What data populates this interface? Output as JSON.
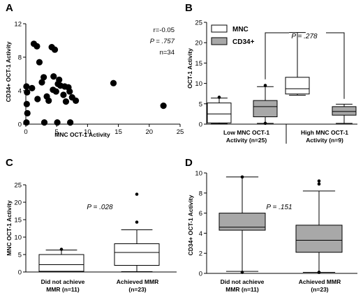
{
  "chart_data": [
    {
      "panel": "A",
      "type": "scatter",
      "xlabel": "MNC OCT-1 Activity",
      "ylabel": "CD34+ OCT-1 Activity",
      "xlim": [
        0,
        25
      ],
      "ylim": [
        0,
        12
      ],
      "xticks": [
        0,
        5,
        10,
        15,
        20,
        25
      ],
      "yticks": [
        0,
        4,
        8,
        12
      ],
      "annotations": {
        "r": "r=-0.05",
        "p_label": "P",
        "p_value": " = .757",
        "n": "n=34"
      },
      "points": [
        {
          "x": 0.1,
          "y": 4.5
        },
        {
          "x": 0.2,
          "y": 3.8
        },
        {
          "x": 0.15,
          "y": 2.4
        },
        {
          "x": 0.25,
          "y": 1.3
        },
        {
          "x": 0.1,
          "y": 0.2
        },
        {
          "x": 1.0,
          "y": 4.3
        },
        {
          "x": 1.3,
          "y": 9.6
        },
        {
          "x": 1.8,
          "y": 9.3
        },
        {
          "x": 1.9,
          "y": 3.0
        },
        {
          "x": 2.2,
          "y": 7.4
        },
        {
          "x": 2.6,
          "y": 5.0
        },
        {
          "x": 2.9,
          "y": 5.6
        },
        {
          "x": 3.0,
          "y": 0.2
        },
        {
          "x": 3.4,
          "y": 3.3
        },
        {
          "x": 3.7,
          "y": 2.8
        },
        {
          "x": 4.2,
          "y": 9.2
        },
        {
          "x": 4.4,
          "y": 4.1
        },
        {
          "x": 4.7,
          "y": 8.9
        },
        {
          "x": 4.5,
          "y": 5.7
        },
        {
          "x": 4.9,
          "y": 3.9
        },
        {
          "x": 5.2,
          "y": 4.8
        },
        {
          "x": 5.4,
          "y": 5.3
        },
        {
          "x": 5.6,
          "y": 4.6
        },
        {
          "x": 5.1,
          "y": 0.2
        },
        {
          "x": 6.1,
          "y": 3.5
        },
        {
          "x": 6.3,
          "y": 4.5
        },
        {
          "x": 6.5,
          "y": 2.7
        },
        {
          "x": 6.9,
          "y": 4.4
        },
        {
          "x": 7.1,
          "y": 3.9
        },
        {
          "x": 7.2,
          "y": 0.2
        },
        {
          "x": 7.5,
          "y": 3.2
        },
        {
          "x": 8.1,
          "y": 2.8
        },
        {
          "x": 14.2,
          "y": 4.9
        },
        {
          "x": 22.3,
          "y": 2.2
        }
      ]
    },
    {
      "panel": "B",
      "type": "box",
      "ylabel": "OCT-1 Activity",
      "ylim": [
        0,
        25
      ],
      "yticks": [
        0,
        5,
        10,
        15,
        20,
        25
      ],
      "legend": [
        {
          "name": "MNC",
          "color": "#ffffff"
        },
        {
          "name": "CD34+",
          "color": "#a8a8a8"
        }
      ],
      "annotation": {
        "p_label": "P",
        "p_value": " = .278"
      },
      "groups": [
        {
          "label_line1": "Low MNC OCT-1",
          "label_line2": "Activity (n=25)"
        },
        {
          "label_line1": "High MNC OCT-1",
          "label_line2": "Activity (n=9)"
        }
      ],
      "boxes": [
        {
          "group": 0,
          "series": "MNC",
          "min": 0.1,
          "q1": 0.3,
          "median": 2.5,
          "q3": 5.2,
          "max": 6.4,
          "outliers": [
            6.6
          ]
        },
        {
          "group": 0,
          "series": "CD34+",
          "min": 0.2,
          "q1": 1.8,
          "median": 4.3,
          "q3": 5.8,
          "max": 9.2,
          "outliers": [
            9.5,
            0.2
          ]
        },
        {
          "group": 1,
          "series": "MNC",
          "min": 7.1,
          "q1": 7.4,
          "median": 8.7,
          "q3": 11.5,
          "max": 22.5,
          "outliers": []
        },
        {
          "group": 1,
          "series": "CD34+",
          "min": 0.2,
          "q1": 2.2,
          "median": 3.1,
          "q3": 4.3,
          "max": 4.9,
          "outliers": []
        }
      ]
    },
    {
      "panel": "C",
      "type": "box",
      "ylabel": "MNC OCT-1 Activity",
      "ylim": [
        0,
        25
      ],
      "yticks": [
        0,
        5,
        10,
        15,
        20,
        25
      ],
      "color": "#ffffff",
      "annotation": {
        "p_label": "P",
        "p_value": " = .028"
      },
      "categories": [
        {
          "label_line1": "Did not achieve",
          "label_line2": "MMR (n=11)"
        },
        {
          "label_line1": "Achieved MMR",
          "label_line2": "(n=23)"
        }
      ],
      "boxes": [
        {
          "min": 0.1,
          "q1": 0.2,
          "median": 2.1,
          "q3": 5.0,
          "max": 6.3,
          "outliers": [
            6.5
          ]
        },
        {
          "min": 0.1,
          "q1": 1.9,
          "median": 5.6,
          "q3": 8.1,
          "max": 12.1,
          "outliers": [
            14.3,
            22.3
          ]
        }
      ]
    },
    {
      "panel": "D",
      "type": "box",
      "ylabel": "CD34+ OCT-1 Activity",
      "ylim": [
        0,
        10
      ],
      "yticks": [
        0,
        2,
        4,
        6,
        8,
        10
      ],
      "color": "#a8a8a8",
      "annotation": {
        "p_label": "P",
        "p_value": " = .151"
      },
      "categories": [
        {
          "label_line1": "Did not achieve",
          "label_line2": "MMR (n=11)"
        },
        {
          "label_line1": "Achieved MMR",
          "label_line2": "(n=23)"
        }
      ],
      "boxes": [
        {
          "min": 0.2,
          "q1": 4.3,
          "median": 4.6,
          "q3": 6.0,
          "max": 9.6,
          "outliers": [
            9.6,
            0.1
          ]
        },
        {
          "min": 0.1,
          "q1": 2.1,
          "median": 3.3,
          "q3": 4.8,
          "max": 8.2,
          "outliers": [
            9.2,
            8.9,
            0.1,
            0.1
          ]
        }
      ]
    }
  ]
}
